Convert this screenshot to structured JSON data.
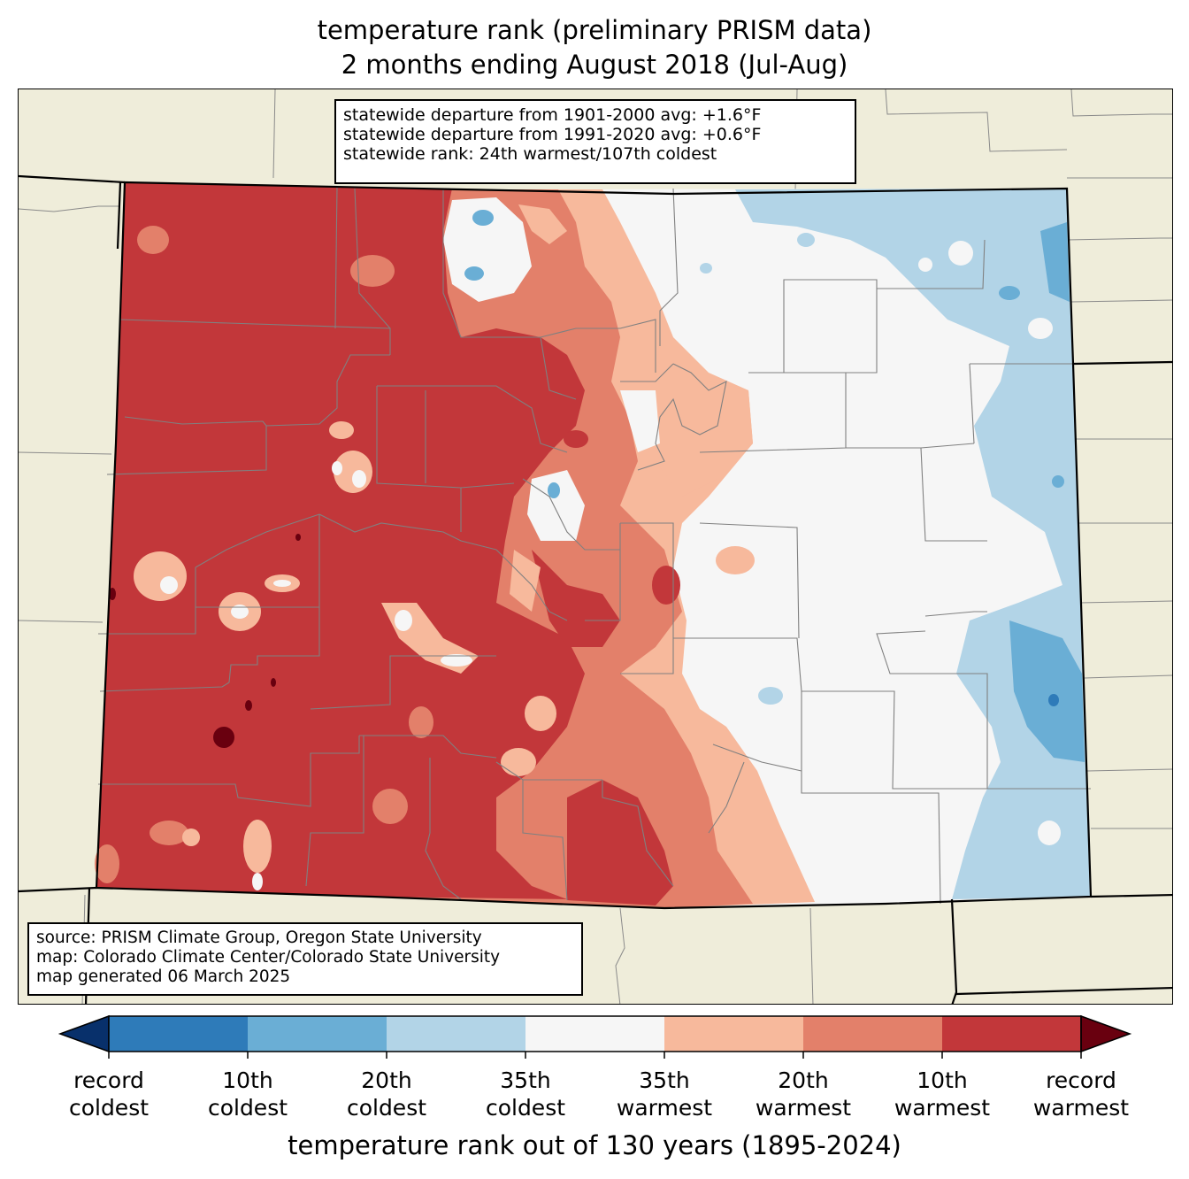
{
  "title": {
    "line1": "temperature rank (preliminary PRISM data)",
    "line2": "2 months ending August 2018 (Jul-Aug)"
  },
  "stats": {
    "line1": "statewide departure from 1901-2000 avg: +1.6°F",
    "line2": "statewide departure from 1991-2020 avg: +0.6°F",
    "line3": "statewide rank: 24th warmest/107th coldest"
  },
  "source": {
    "line1": "source: PRISM Climate Group, Oregon State University",
    "line2": "map: Colorado Climate Center/Colorado State University",
    "line3": "map generated 06 March 2025"
  },
  "colors": {
    "record_coldest": "#08306b",
    "tenth_coldest": "#2e7bb9",
    "twentieth_coldest": "#6aaed5",
    "thirtyfifth_coldest": "#b2d4e7",
    "normal": "#f6f6f6",
    "thirtyfifth_warmest": "#f7b99c",
    "twentieth_warmest": "#e3806a",
    "tenth_warmest": "#c2373a",
    "record_warmest": "#69000f",
    "land": "#efedda"
  },
  "colorbar": {
    "labels": [
      {
        "top": "record",
        "bottom": "coldest"
      },
      {
        "top": "10th",
        "bottom": "coldest"
      },
      {
        "top": "20th",
        "bottom": "coldest"
      },
      {
        "top": "35th",
        "bottom": "coldest"
      },
      {
        "top": "35th",
        "bottom": "warmest"
      },
      {
        "top": "20th",
        "bottom": "warmest"
      },
      {
        "top": "10th",
        "bottom": "warmest"
      },
      {
        "top": "record",
        "bottom": "warmest"
      }
    ],
    "axis_label": "temperature rank out of 130 years (1895-2024)"
  }
}
